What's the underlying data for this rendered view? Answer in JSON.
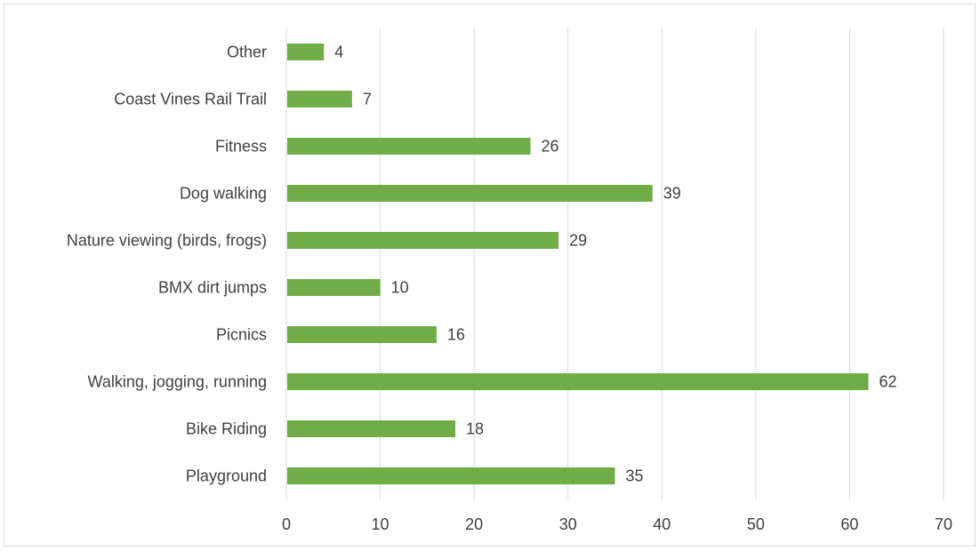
{
  "chart_data": {
    "type": "bar",
    "orientation": "horizontal",
    "title": "",
    "xlabel": "",
    "ylabel": "",
    "categories": [
      "Playground",
      "Bike Riding",
      "Walking, jogging, running",
      "Picnics",
      "BMX dirt jumps",
      "Nature viewing (birds, frogs)",
      "Dog walking",
      "Fitness ",
      "Coast Vines Rail Trail",
      "Other"
    ],
    "values": [
      35,
      18,
      62,
      16,
      10,
      29,
      39,
      26,
      7,
      4
    ],
    "xlim": [
      0,
      70
    ],
    "x_ticks": [
      0,
      10,
      20,
      30,
      40,
      50,
      60,
      70
    ],
    "grid": "vertical",
    "legend": "none",
    "data_labels": true
  },
  "colors": {
    "bar": "#70ad47",
    "grid": "#d9d9d9",
    "text": "#404040"
  }
}
